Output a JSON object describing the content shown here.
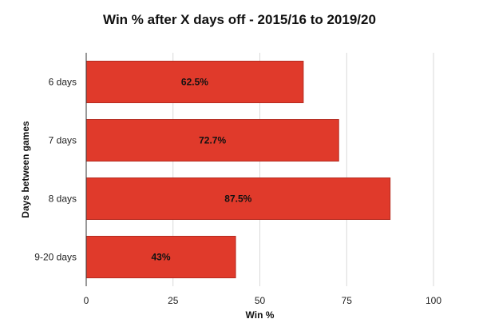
{
  "chart_data": {
    "type": "bar",
    "orientation": "horizontal",
    "title": "Win % after X days off - 2015/16 to 2019/20",
    "xlabel": "Win %",
    "ylabel": "Days between games",
    "categories": [
      "6 days",
      "7 days",
      "8 days",
      "9-20 days"
    ],
    "values": [
      62.5,
      72.7,
      87.5,
      43
    ],
    "data_labels": [
      "62.5%",
      "72.7%",
      "87.5%",
      "43%"
    ],
    "xlim": [
      0,
      100
    ],
    "xticks": [
      "0",
      "25",
      "50",
      "75",
      "100"
    ],
    "grid": true,
    "legend": "none",
    "bar_color": "#e03a2b",
    "bar_edge_color": "#b52a1f"
  }
}
